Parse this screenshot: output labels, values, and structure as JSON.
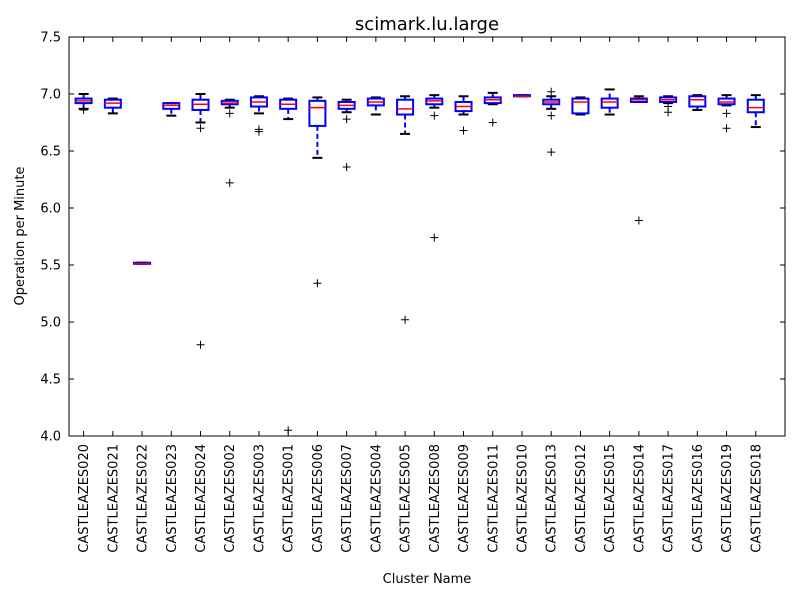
{
  "chart_data": {
    "type": "box",
    "title": "scimark.lu.large",
    "xlabel": "Cluster Name",
    "ylabel": "Operation per Minute",
    "ylim": [
      4.0,
      7.5
    ],
    "yticks": [
      "4.0",
      "4.5",
      "5.0",
      "5.5",
      "6.0",
      "6.5",
      "7.0",
      "7.5"
    ],
    "grid": false,
    "colors": {
      "box": "#0000ff",
      "median": "#ff0000",
      "cap": "#000000",
      "whisker": "#0000ff",
      "flier": "#000000"
    },
    "categories": [
      "CASTLEAZES020",
      "CASTLEAZES021",
      "CASTLEAZES022",
      "CASTLEAZES023",
      "CASTLEAZES024",
      "CASTLEAZES002",
      "CASTLEAZES003",
      "CASTLEAZES001",
      "CASTLEAZES006",
      "CASTLEAZES007",
      "CASTLEAZES004",
      "CASTLEAZES005",
      "CASTLEAZES008",
      "CASTLEAZES009",
      "CASTLEAZES011",
      "CASTLEAZES010",
      "CASTLEAZES013",
      "CASTLEAZES012",
      "CASTLEAZES015",
      "CASTLEAZES014",
      "CASTLEAZES017",
      "CASTLEAZES016",
      "CASTLEAZES019",
      "CASTLEAZES018"
    ],
    "boxes": [
      {
        "whislo": 6.87,
        "q1": 6.92,
        "med": 6.94,
        "q3": 6.96,
        "whishi": 7.0,
        "fliers": [
          6.86
        ]
      },
      {
        "whislo": 6.83,
        "q1": 6.88,
        "med": 6.92,
        "q3": 6.95,
        "whishi": 6.96,
        "fliers": []
      },
      {
        "whislo": 5.51,
        "q1": 5.51,
        "med": 5.51,
        "q3": 5.52,
        "whishi": 5.52,
        "fliers": []
      },
      {
        "whislo": 6.81,
        "q1": 6.87,
        "med": 6.9,
        "q3": 6.92,
        "whishi": 6.92,
        "fliers": []
      },
      {
        "whislo": 6.75,
        "q1": 6.86,
        "med": 6.91,
        "q3": 6.95,
        "whishi": 7.0,
        "fliers": [
          6.7,
          4.8
        ]
      },
      {
        "whislo": 6.88,
        "q1": 6.91,
        "med": 6.92,
        "q3": 6.94,
        "whishi": 6.95,
        "fliers": [
          6.83,
          6.22
        ]
      },
      {
        "whislo": 6.83,
        "q1": 6.89,
        "med": 6.93,
        "q3": 6.97,
        "whishi": 6.98,
        "fliers": [
          6.69,
          6.67
        ]
      },
      {
        "whislo": 6.78,
        "q1": 6.87,
        "med": 6.91,
        "q3": 6.95,
        "whishi": 6.96,
        "fliers": [
          4.05
        ]
      },
      {
        "whislo": 6.44,
        "q1": 6.72,
        "med": 6.88,
        "q3": 6.94,
        "whishi": 6.97,
        "fliers": [
          5.34
        ]
      },
      {
        "whislo": 6.84,
        "q1": 6.87,
        "med": 6.9,
        "q3": 6.93,
        "whishi": 6.95,
        "fliers": [
          6.78,
          6.36
        ]
      },
      {
        "whislo": 6.82,
        "q1": 6.9,
        "med": 6.93,
        "q3": 6.96,
        "whishi": 6.97,
        "fliers": []
      },
      {
        "whislo": 6.65,
        "q1": 6.82,
        "med": 6.87,
        "q3": 6.95,
        "whishi": 6.98,
        "fliers": [
          5.02
        ]
      },
      {
        "whislo": 6.88,
        "q1": 6.91,
        "med": 6.94,
        "q3": 6.96,
        "whishi": 6.99,
        "fliers": [
          6.81,
          5.74
        ]
      },
      {
        "whislo": 6.82,
        "q1": 6.85,
        "med": 6.89,
        "q3": 6.93,
        "whishi": 6.98,
        "fliers": [
          6.68
        ]
      },
      {
        "whislo": 6.91,
        "q1": 6.92,
        "med": 6.95,
        "q3": 6.97,
        "whishi": 7.01,
        "fliers": [
          6.75
        ]
      },
      {
        "whislo": 6.98,
        "q1": 6.98,
        "med": 6.98,
        "q3": 6.99,
        "whishi": 6.99,
        "fliers": []
      },
      {
        "whislo": 6.87,
        "q1": 6.91,
        "med": 6.93,
        "q3": 6.95,
        "whishi": 6.98,
        "fliers": [
          6.81,
          7.02,
          6.49
        ]
      },
      {
        "whislo": 6.82,
        "q1": 6.83,
        "med": 6.93,
        "q3": 6.96,
        "whishi": 6.97,
        "fliers": []
      },
      {
        "whislo": 6.82,
        "q1": 6.88,
        "med": 6.93,
        "q3": 6.96,
        "whishi": 7.04,
        "fliers": []
      },
      {
        "whislo": 6.93,
        "q1": 6.93,
        "med": 6.95,
        "q3": 6.96,
        "whishi": 6.98,
        "fliers": [
          5.89
        ]
      },
      {
        "whislo": 6.92,
        "q1": 6.93,
        "med": 6.95,
        "q3": 6.97,
        "whishi": 6.98,
        "fliers": [
          6.89,
          6.84
        ]
      },
      {
        "whislo": 6.86,
        "q1": 6.89,
        "med": 6.95,
        "q3": 6.98,
        "whishi": 6.99,
        "fliers": []
      },
      {
        "whislo": 6.9,
        "q1": 6.91,
        "med": 6.93,
        "q3": 6.96,
        "whishi": 6.99,
        "fliers": [
          6.83,
          6.7
        ]
      },
      {
        "whislo": 6.71,
        "q1": 6.84,
        "med": 6.88,
        "q3": 6.95,
        "whishi": 6.99,
        "fliers": []
      }
    ]
  }
}
